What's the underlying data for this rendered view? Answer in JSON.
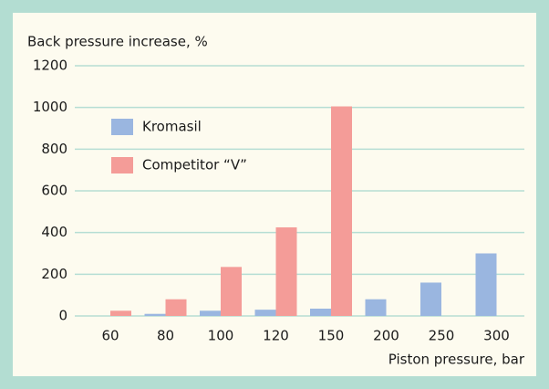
{
  "chart_data": {
    "type": "bar",
    "y_label": "Back pressure increase, %",
    "x_label": "Piston pressure, bar",
    "categories": [
      "60",
      "80",
      "100",
      "120",
      "150",
      "200",
      "250",
      "300"
    ],
    "series": [
      {
        "name": "Kromasil",
        "color": "#9ab6e0",
        "values": [
          null,
          10,
          25,
          30,
          35,
          80,
          160,
          300
        ]
      },
      {
        "name": "Competitor “V”",
        "color": "#f49c98",
        "values": [
          25,
          80,
          235,
          425,
          1005,
          null,
          null,
          null
        ]
      }
    ],
    "ylim": [
      0,
      1200
    ],
    "yticks": [
      0,
      200,
      400,
      600,
      800,
      1000,
      1200
    ],
    "grid": true
  }
}
